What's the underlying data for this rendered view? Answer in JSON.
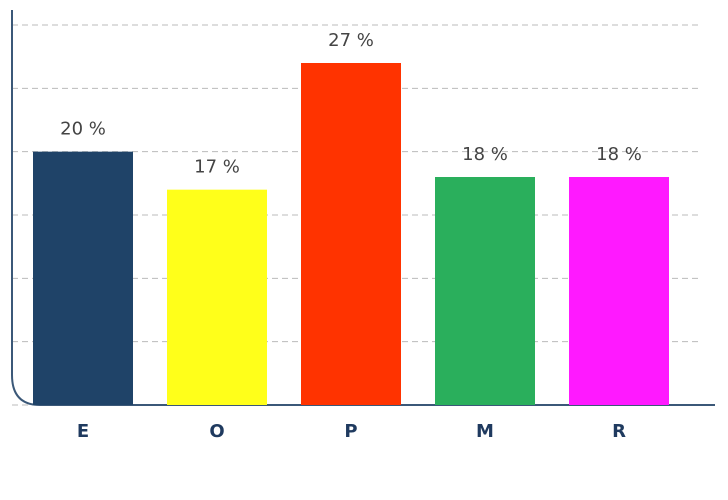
{
  "chart_data": {
    "type": "bar",
    "categories": [
      "E",
      "O",
      "P",
      "M",
      "R"
    ],
    "values": [
      20,
      17,
      27,
      18,
      18
    ],
    "value_labels": [
      "20 %",
      "17 %",
      "27 %",
      "18 %",
      "18 %"
    ],
    "colors": [
      "#1f4368",
      "#ffff1a",
      "#ff3300",
      "#2aaf5c",
      "#ff19ff"
    ],
    "ylim": [
      0,
      30
    ],
    "yticks": [
      0,
      5,
      10,
      15,
      20,
      25,
      30
    ],
    "grid": true
  }
}
